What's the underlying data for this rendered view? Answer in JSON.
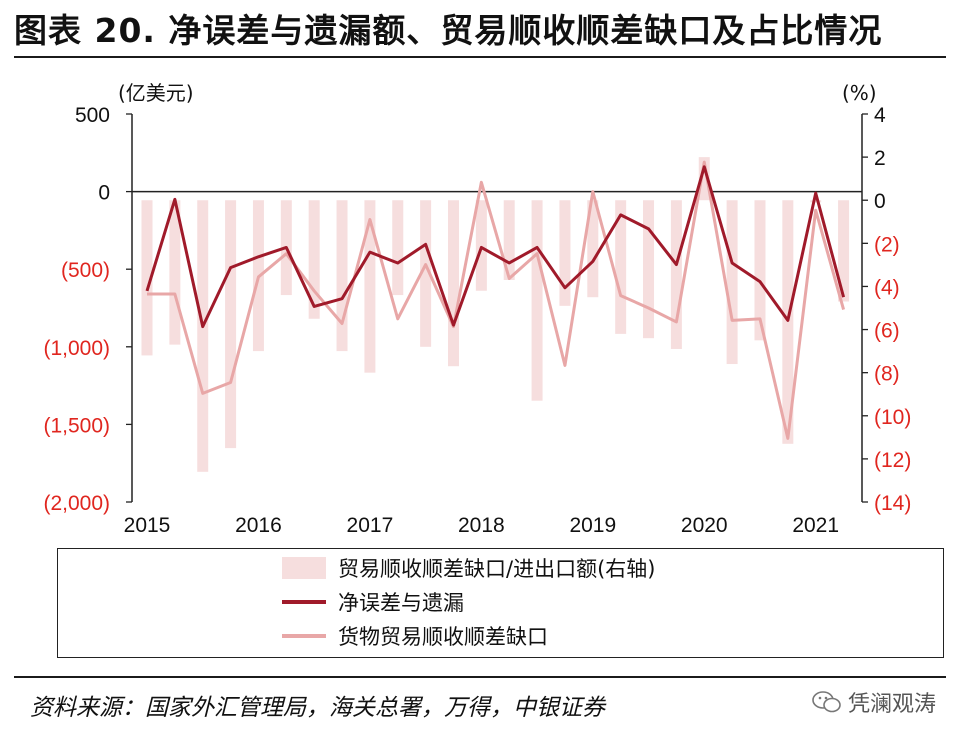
{
  "title": "图表 20. 净误差与遗漏额、贸易顺收顺差缺口及占比情况",
  "source": "资料来源：国家外汇管理局，海关总署，万得，中银证券",
  "watermark": {
    "text": "凭澜观涛",
    "icon": "wechat-icon"
  },
  "colors": {
    "bars": "#f6dede",
    "net_error": "#a01a2a",
    "goods_gap": "#e8a7a7",
    "neg_tick": "#e0261f"
  },
  "chart_data": {
    "type": "bar+line",
    "left_axis": {
      "unit": "(亿美元)",
      "ylim": [
        -2000,
        500
      ],
      "ticks": [
        500,
        0,
        -500,
        -1000,
        -1500,
        -2000
      ],
      "tick_labels": [
        "500",
        "0",
        "(500)",
        "(1,000)",
        "(1,500)",
        "(2,000)"
      ]
    },
    "right_axis": {
      "unit": "(%)",
      "ylim": [
        -14,
        4
      ],
      "ticks": [
        4,
        2,
        0,
        -2,
        -4,
        -6,
        -8,
        -10,
        -12,
        -14
      ],
      "tick_labels": [
        "4",
        "2",
        "0",
        "(2)",
        "(4)",
        "(6)",
        "(8)",
        "(10)",
        "(12)",
        "(14)"
      ]
    },
    "x_axis": {
      "tick_labels": [
        "2015",
        "2016",
        "2017",
        "2018",
        "2019",
        "2020",
        "2021"
      ],
      "tick_positions": [
        0,
        4,
        8,
        12,
        16,
        20,
        24
      ]
    },
    "x": [
      "2015Q1",
      "2015Q2",
      "2015Q3",
      "2015Q4",
      "2016Q1",
      "2016Q2",
      "2016Q3",
      "2016Q4",
      "2017Q1",
      "2017Q2",
      "2017Q3",
      "2017Q4",
      "2018Q1",
      "2018Q2",
      "2018Q3",
      "2018Q4",
      "2019Q1",
      "2019Q2",
      "2019Q3",
      "2019Q4",
      "2020Q1",
      "2020Q2",
      "2020Q3",
      "2020Q4",
      "2021Q1",
      "2021Q2"
    ],
    "series": [
      {
        "name": "贸易顺收顺差缺口/进出口额(右轴)",
        "type": "bar",
        "axis": "right",
        "values": [
          -7.2,
          -6.7,
          -12.6,
          -11.5,
          -7.0,
          -4.4,
          -5.5,
          -7.0,
          -8.0,
          -4.4,
          -6.8,
          -7.7,
          -4.2,
          -3.7,
          -9.3,
          -4.9,
          -4.5,
          -6.2,
          -6.4,
          -6.9,
          2.0,
          -7.6,
          -6.5,
          -11.3,
          -0.1,
          -4.7
        ]
      },
      {
        "name": "净误差与遗漏",
        "type": "line",
        "axis": "left",
        "values": [
          -640,
          -50,
          -870,
          -490,
          -420,
          -360,
          -740,
          -690,
          -390,
          -460,
          -340,
          -860,
          -360,
          -460,
          -360,
          -620,
          -450,
          -150,
          -240,
          -470,
          160,
          -460,
          -580,
          -830,
          -10,
          -680
        ]
      },
      {
        "name": "货物贸易顺收顺差缺口",
        "type": "line",
        "axis": "left",
        "values": [
          -660,
          -660,
          -1300,
          -1230,
          -550,
          -400,
          -640,
          -850,
          -180,
          -820,
          -470,
          -870,
          60,
          -560,
          -400,
          -1120,
          0,
          -670,
          -750,
          -840,
          190,
          -830,
          -820,
          -1590,
          -120,
          -760
        ]
      }
    ]
  }
}
